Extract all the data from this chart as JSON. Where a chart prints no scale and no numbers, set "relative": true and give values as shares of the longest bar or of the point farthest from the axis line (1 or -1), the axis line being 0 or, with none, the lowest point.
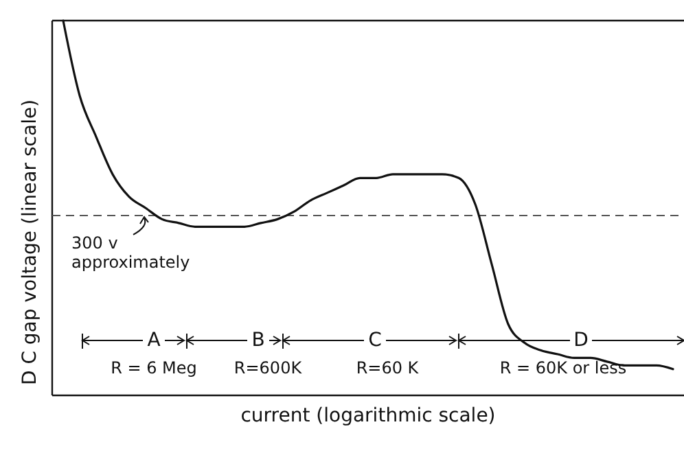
{
  "chart_data": {
    "type": "line",
    "relative": true,
    "xlabel": "current (logarithmic scale)",
    "ylabel": "D C gap voltage (linear scale)",
    "categories": [
      null,
      null,
      null,
      null,
      null,
      null,
      null,
      null,
      null,
      null,
      null,
      null,
      null,
      null,
      null,
      null,
      null,
      null,
      null,
      null,
      null,
      null,
      null,
      null,
      null,
      null,
      null,
      null,
      null,
      null,
      null,
      null,
      null,
      null,
      null,
      null,
      null,
      null
    ],
    "series": [
      {
        "color": "#111111",
        "values": [
          1.0,
          0.8,
          0.69,
          0.59,
          0.53,
          0.5,
          0.47,
          0.46,
          0.45,
          0.45,
          0.45,
          0.45,
          0.46,
          0.47,
          0.49,
          0.52,
          0.54,
          0.56,
          0.58,
          0.58,
          0.59,
          0.59,
          0.59,
          0.59,
          0.58,
          0.51,
          0.35,
          0.19,
          0.14,
          0.12,
          0.11,
          0.1,
          0.1,
          0.09,
          0.08,
          0.08,
          0.08,
          0.07
        ]
      }
    ],
    "ref_lines": [
      {
        "axis": "y",
        "value": 0.48,
        "label": "300 v approximately",
        "color": "#555555",
        "line_style": "dashed"
      }
    ],
    "annotations": [
      "A",
      "B",
      "C",
      "D",
      "R = 6 Meg",
      "R=600K",
      "R=60 K",
      "R = 60K or less"
    ],
    "grid": false,
    "marker": "none",
    "line_style": "solid"
  }
}
